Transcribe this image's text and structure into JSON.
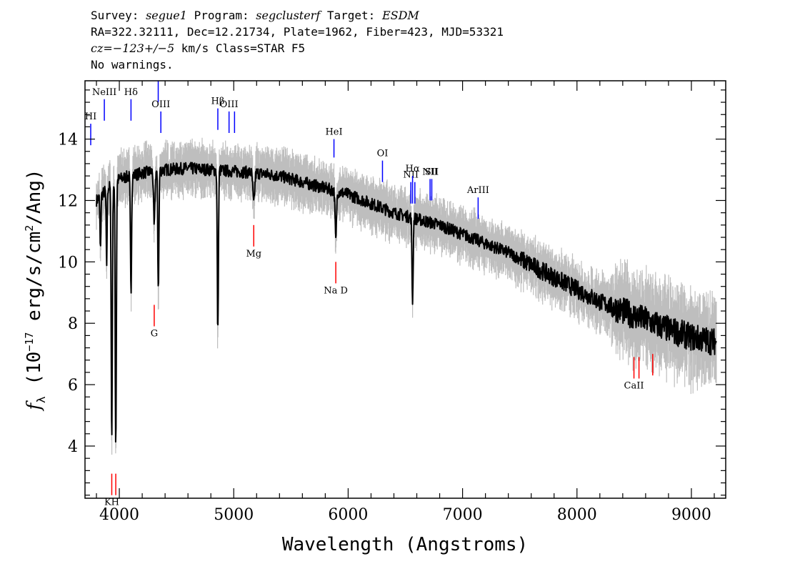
{
  "header": {
    "line1": {
      "survey_label": "Survey: ",
      "survey": "segue1",
      "program_label": " Program: ",
      "program": "segclusterf",
      "target_label": " Target: ",
      "target": "ESDM"
    },
    "line2": "RA=322.32111, Dec=12.21734, Plate=1962, Fiber=423, MJD=53321",
    "line3": {
      "cz": "cz=−123+/−5",
      "rest": " km/s Class=STAR F5"
    },
    "line4": "No warnings."
  },
  "chart_data": {
    "type": "line",
    "xlabel": "Wavelength (Angstroms)",
    "ylabel_prefix": "f",
    "ylabel_sub": "λ",
    "ylabel_mid": " (10",
    "ylabel_exp": "−17",
    "ylabel_unit": " erg/s/cm",
    "ylabel_sq": "2",
    "ylabel_end": "/Ang)",
    "xlim": [
      3700,
      9300
    ],
    "ylim": [
      2.3,
      15.9
    ],
    "xticks": [
      4000,
      5000,
      6000,
      7000,
      8000,
      9000
    ],
    "yticks": [
      4,
      6,
      8,
      10,
      12,
      14
    ],
    "colors": {
      "flux": "#000000",
      "error_band": "#bebebe",
      "emission": "#0000ff",
      "absorption": "#ff0000"
    },
    "continuum": {
      "x": [
        3800,
        3900,
        4000,
        4100,
        4200,
        4400,
        4600,
        4800,
        5000,
        5200,
        5400,
        5600,
        5800,
        6000,
        6200,
        6400,
        6600,
        6800,
        7000,
        7200,
        7400,
        7600,
        7800,
        8000,
        8200,
        8400,
        8600,
        8800,
        9000,
        9200
      ],
      "y": [
        12.0,
        12.4,
        12.7,
        12.8,
        12.9,
        13.0,
        13.05,
        13.0,
        12.95,
        12.9,
        12.8,
        12.6,
        12.4,
        12.2,
        11.9,
        11.6,
        11.4,
        11.2,
        10.9,
        10.6,
        10.3,
        9.9,
        9.5,
        9.1,
        8.7,
        8.4,
        8.1,
        7.8,
        7.55,
        7.4
      ]
    },
    "absorption_features": [
      {
        "x": 3934,
        "depth": 8.3,
        "width": 5
      },
      {
        "x": 3969,
        "depth": 8.6,
        "width": 5
      },
      {
        "x": 3889,
        "depth": 2.5,
        "width": 4
      },
      {
        "x": 3835,
        "depth": 1.8,
        "width": 4
      },
      {
        "x": 4102,
        "depth": 3.8,
        "width": 5
      },
      {
        "x": 4305,
        "depth": 1.8,
        "width": 6
      },
      {
        "x": 4341,
        "depth": 3.8,
        "width": 5
      },
      {
        "x": 4861,
        "depth": 5.3,
        "width": 5
      },
      {
        "x": 5175,
        "depth": 1.0,
        "width": 8
      },
      {
        "x": 5892,
        "depth": 1.6,
        "width": 6
      },
      {
        "x": 6563,
        "depth": 2.7,
        "width": 5
      }
    ],
    "emission_lines": [
      {
        "label": "HI",
        "x": 3750,
        "y1": 14.5,
        "y2": 13.8
      },
      {
        "label": "NeIII",
        "x": 3869,
        "y1": 15.3,
        "y2": 14.6
      },
      {
        "label": "Hδ",
        "x": 4102,
        "y1": 15.3,
        "y2": 14.6
      },
      {
        "label": "",
        "x": 4340,
        "y1": 15.9,
        "y2": 15.2
      },
      {
        "label": "OIII",
        "x": 4363,
        "y1": 14.9,
        "y2": 14.2
      },
      {
        "label": "Hβ",
        "x": 4861,
        "y1": 15.0,
        "y2": 14.3
      },
      {
        "label": "OIII",
        "x": 4959,
        "y1": 14.9,
        "y2": 14.2
      },
      {
        "label": "",
        "x": 5007,
        "y1": 14.9,
        "y2": 14.2
      },
      {
        "label": "HeI",
        "x": 5876,
        "y1": 14.0,
        "y2": 13.4
      },
      {
        "label": "OI",
        "x": 6300,
        "y1": 13.3,
        "y2": 12.6
      },
      {
        "label": "NII",
        "x": 6548,
        "y1": 12.6,
        "y2": 11.9
      },
      {
        "label": "Hα",
        "x": 6563,
        "y1": 12.8,
        "y2": 11.9
      },
      {
        "label": "",
        "x": 6583,
        "y1": 12.6,
        "y2": 11.9
      },
      {
        "label": "NII",
        "x": 6716,
        "y1": 12.7,
        "y2": 12.0
      },
      {
        "label": "SII",
        "x": 6731,
        "y1": 12.7,
        "y2": 12.0
      },
      {
        "label": "ArIII",
        "x": 7136,
        "y1": 12.1,
        "y2": 11.4
      }
    ],
    "absorption_lines": [
      {
        "label": "KH",
        "x": 3934,
        "y1": 3.1,
        "y2": 2.4
      },
      {
        "label": "",
        "x": 3969,
        "y1": 3.1,
        "y2": 2.4
      },
      {
        "label": "G",
        "x": 4305,
        "y1": 8.6,
        "y2": 7.9
      },
      {
        "label": "Mg",
        "x": 5175,
        "y1": 11.2,
        "y2": 10.5
      },
      {
        "label": "Na D",
        "x": 5892,
        "y1": 10.0,
        "y2": 9.3
      },
      {
        "label": "CaII",
        "x": 8498,
        "y1": 6.9,
        "y2": 6.2
      },
      {
        "label": "",
        "x": 8542,
        "y1": 6.9,
        "y2": 6.2
      },
      {
        "label": "",
        "x": 8662,
        "y1": 7.0,
        "y2": 6.3
      }
    ]
  }
}
